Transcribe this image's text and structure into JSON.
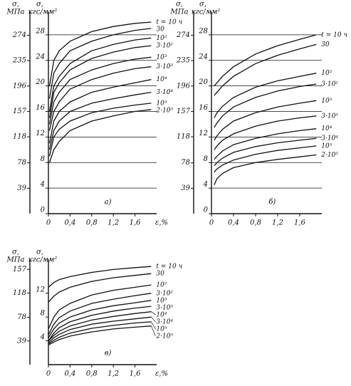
{
  "chart_data": [
    {
      "type": "line",
      "title": "а)",
      "color": "#111111",
      "grid": true,
      "y_label": [
        "σ,",
        "кгс/мм²"
      ],
      "y2_label": [
        "σ,",
        "МПа"
      ],
      "x_label": "ε,%",
      "xlim": [
        0,
        2.0
      ],
      "xticks": [
        0,
        {
          "value": 0.4,
          "label": "0,4"
        },
        {
          "value": 0.8,
          "label": "0,8"
        },
        {
          "value": 1.2,
          "label": "1,2"
        },
        {
          "value": 1.6,
          "label": "1,6"
        }
      ],
      "ylim": [
        0,
        31
      ],
      "yticks": [
        0,
        4,
        8,
        12,
        16,
        20,
        24,
        28
      ],
      "y2lim": [
        0,
        304
      ],
      "y2ticks": [
        39,
        78,
        118,
        157,
        196,
        235,
        274
      ],
      "x": [
        0.02,
        0.1,
        0.2,
        0.4,
        0.8,
        1.2,
        1.6,
        1.9
      ],
      "series": [
        {
          "name": "t = 10 ч",
          "values": [
            20,
            24,
            25.5,
            27,
            28.5,
            29.3,
            29.8,
            30
          ]
        },
        {
          "name": "30",
          "values": [
            18,
            22,
            23.5,
            25.5,
            27,
            28,
            28.7,
            29
          ]
        },
        {
          "name": "10²",
          "values": [
            16,
            20,
            21.5,
            23.5,
            25.5,
            26.5,
            27.2,
            27.5
          ]
        },
        {
          "name": "3·10²",
          "values": [
            15,
            19,
            20.5,
            22.5,
            24.3,
            25.3,
            26,
            26.3
          ]
        },
        {
          "name": "10³",
          "values": [
            14,
            17.5,
            19,
            21,
            22.5,
            23.5,
            24.2,
            24.5
          ]
        },
        {
          "name": "3·10³",
          "values": [
            13,
            16,
            17.5,
            19.5,
            21,
            22,
            22.7,
            23
          ]
        },
        {
          "name": "10⁴",
          "values": [
            11,
            14.5,
            16,
            17.5,
            19,
            19.8,
            20.5,
            21
          ]
        },
        {
          "name": "3·10⁴",
          "values": [
            10,
            13,
            14.5,
            16,
            17.3,
            18,
            18.6,
            19
          ]
        },
        {
          "name": "10⁵",
          "values": [
            9,
            12,
            13.2,
            14.5,
            15.8,
            16.5,
            17,
            17.3
          ]
        },
        {
          "name": "2·10⁵",
          "values": [
            8,
            10,
            11.3,
            13,
            14.5,
            15.3,
            16,
            16.3
          ]
        }
      ]
    },
    {
      "type": "line",
      "title": "б)",
      "color": "#111111",
      "grid": true,
      "y_label": [
        "σ,",
        "кгс/мм²"
      ],
      "y2_label": [
        "σ,",
        "МПа"
      ],
      "xlim": [
        0,
        2.0
      ],
      "xticks": [
        0,
        {
          "value": 0.4,
          "label": "0,4"
        },
        {
          "value": 0.8,
          "label": "0,8"
        },
        {
          "value": 1.2,
          "label": "1,2"
        },
        {
          "value": 1.6,
          "label": "1,6"
        }
      ],
      "ylim": [
        0,
        31
      ],
      "yticks": [
        0,
        4,
        8,
        12,
        16,
        20,
        24,
        28
      ],
      "y2lim": [
        0,
        304
      ],
      "y2ticks": [
        39,
        78,
        118,
        157,
        196,
        235,
        274
      ],
      "x": [
        0.05,
        0.1,
        0.2,
        0.4,
        0.8,
        1.2,
        1.6,
        1.9
      ],
      "series": [
        {
          "name": "t = 10 ч",
          "values": [
            20,
            20.5,
            21.5,
            23,
            25,
            26.3,
            27.3,
            28
          ]
        },
        {
          "name": "30",
          "values": [
            18.5,
            19,
            20,
            21.5,
            23.5,
            24.8,
            25.8,
            26.5
          ]
        },
        {
          "name": "10²",
          "values": [
            15,
            15.8,
            16.8,
            18.2,
            19.8,
            20.8,
            21.5,
            22
          ]
        },
        {
          "name": "3·10²",
          "values": [
            13.5,
            14.2,
            15.3,
            16.7,
            18.2,
            19.2,
            19.9,
            20.3
          ]
        },
        {
          "name": "10³",
          "values": [
            11.5,
            12.2,
            13.2,
            14.5,
            15.8,
            16.7,
            17.3,
            17.7
          ]
        },
        {
          "name": "3·10³",
          "values": [
            10,
            10.6,
            11.5,
            12.5,
            13.7,
            14.5,
            15,
            15.3
          ]
        },
        {
          "name": "10⁴",
          "values": [
            8.5,
            9,
            9.8,
            10.8,
            11.8,
            12.5,
            13,
            13.3
          ]
        },
        {
          "name": "3·10⁴",
          "values": [
            7.5,
            8,
            8.7,
            9.6,
            10.5,
            11.1,
            11.5,
            11.8
          ]
        },
        {
          "name": "10⁵",
          "values": [
            6.5,
            7,
            7.6,
            8.4,
            9.3,
            9.9,
            10.3,
            10.6
          ]
        },
        {
          "name": "2·10⁵",
          "values": [
            4.5,
            5.5,
            6.3,
            7.2,
            8,
            8.5,
            8.9,
            9.2
          ]
        }
      ]
    },
    {
      "type": "line",
      "title": "в)",
      "color": "#111111",
      "grid": false,
      "y_label": [
        "σ,",
        "кгс/мм²"
      ],
      "y2_label": [
        "σ,",
        "МПа"
      ],
      "x_label": "ε,%",
      "xlim": [
        0,
        2.0
      ],
      "xticks": [
        0,
        {
          "value": 0.4,
          "label": "0,4"
        },
        {
          "value": 0.8,
          "label": "0,8"
        },
        {
          "value": 1.2,
          "label": "1,2"
        },
        {
          "value": 1.6,
          "label": "1,6"
        }
      ],
      "ylim": [
        0,
        17
      ],
      "yticks": [
        4,
        8,
        12
      ],
      "y2lim": [
        0,
        166.7
      ],
      "y2ticks": [
        39,
        78,
        118,
        157
      ],
      "x": [
        0,
        0.1,
        0.2,
        0.4,
        0.8,
        1.2,
        1.6,
        1.9
      ],
      "series": [
        {
          "name": "t = 10 ч",
          "values": [
            13,
            13.8,
            14.3,
            14.8,
            15.5,
            16,
            16.3,
            16.5
          ]
        },
        {
          "name": "30",
          "values": [
            10.5,
            11.5,
            12.2,
            13,
            14,
            14.6,
            15,
            15.3
          ]
        },
        {
          "name": "10²",
          "values": [
            6,
            8,
            9.2,
            10.3,
            11.7,
            12.5,
            13,
            13.4
          ]
        },
        {
          "name": "3·10²",
          "values": [
            5,
            6.8,
            7.9,
            9,
            10.3,
            11,
            11.6,
            12
          ]
        },
        {
          "name": "10³",
          "values": [
            4.5,
            6,
            7,
            8,
            9.2,
            9.9,
            10.4,
            10.8
          ]
        },
        {
          "name": "3·10³",
          "values": [
            4,
            5.3,
            6.2,
            7.2,
            8.3,
            9,
            9.5,
            9.8
          ]
        },
        {
          "name": "10⁴",
          "values": [
            4,
            4.9,
            5.6,
            6.5,
            7.5,
            8.1,
            8.6,
            8.9
          ]
        },
        {
          "name": "3·10⁴",
          "values": [
            3.7,
            4.5,
            5.1,
            5.9,
            6.8,
            7.3,
            7.7,
            8
          ]
        },
        {
          "name": "10⁵",
          "values": [
            3.5,
            4.1,
            4.6,
            5.3,
            6.1,
            6.6,
            7,
            7.2
          ]
        },
        {
          "name": "2·10⁵",
          "values": [
            3.3,
            3.8,
            4.2,
            4.8,
            5.5,
            6,
            6.3,
            6.5
          ]
        }
      ]
    }
  ]
}
